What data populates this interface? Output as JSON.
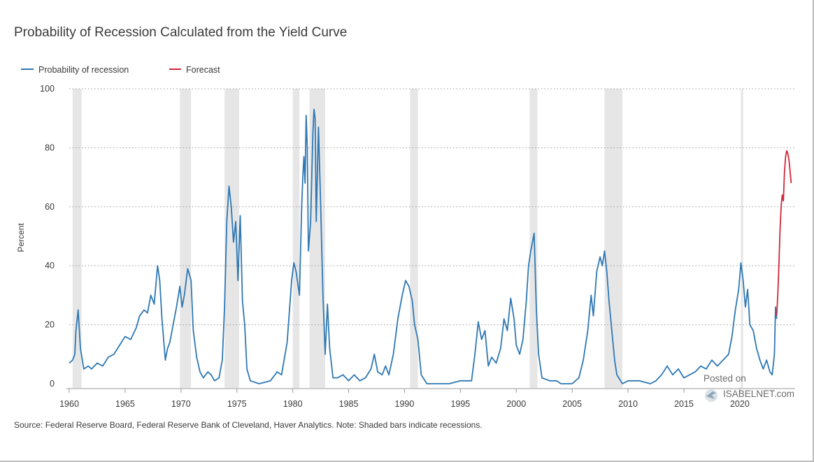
{
  "chart_data": {
    "type": "line",
    "title": "Probability of Recession Calculated from the Yield Curve",
    "ylabel": "Percent",
    "xlabel": "",
    "xlim": [
      1960,
      2024.7
    ],
    "ylim": [
      0,
      100
    ],
    "y_ticks": [
      0,
      20,
      40,
      60,
      80,
      100
    ],
    "x_ticks": [
      1960,
      1965,
      1970,
      1975,
      1980,
      1985,
      1990,
      1995,
      2000,
      2005,
      2010,
      2015,
      2020
    ],
    "grid": "horizontal dotted",
    "legend_position": "top-left",
    "colors": {
      "probability": "#2f78b4",
      "forecast": "#d0283a",
      "recession_shade": "#e6e6e6"
    },
    "recessions": [
      [
        1960.3,
        1961.1
      ],
      [
        1969.9,
        1970.9
      ],
      [
        1973.9,
        1975.2
      ],
      [
        1980.0,
        1980.6
      ],
      [
        1981.5,
        1982.9
      ],
      [
        1990.5,
        1991.2
      ],
      [
        2001.2,
        2001.9
      ],
      [
        2007.9,
        2009.5
      ],
      [
        2020.1,
        2020.3
      ]
    ],
    "series": [
      {
        "name": "Probability of recession",
        "color": "#2f78b4",
        "points": [
          [
            1960.0,
            7
          ],
          [
            1960.3,
            8
          ],
          [
            1960.5,
            10
          ],
          [
            1960.6,
            18
          ],
          [
            1960.8,
            25
          ],
          [
            1961.0,
            12
          ],
          [
            1961.3,
            5
          ],
          [
            1961.7,
            6
          ],
          [
            1962.0,
            5
          ],
          [
            1962.5,
            7
          ],
          [
            1963.0,
            6
          ],
          [
            1963.5,
            9
          ],
          [
            1964.0,
            10
          ],
          [
            1964.5,
            13
          ],
          [
            1965.0,
            16
          ],
          [
            1965.5,
            15
          ],
          [
            1966.0,
            19
          ],
          [
            1966.3,
            23
          ],
          [
            1966.7,
            25
          ],
          [
            1967.0,
            24
          ],
          [
            1967.3,
            30
          ],
          [
            1967.6,
            27
          ],
          [
            1967.9,
            40
          ],
          [
            1968.1,
            35
          ],
          [
            1968.3,
            22
          ],
          [
            1968.6,
            8
          ],
          [
            1968.8,
            12
          ],
          [
            1969.0,
            14
          ],
          [
            1969.3,
            20
          ],
          [
            1969.6,
            26
          ],
          [
            1969.9,
            33
          ],
          [
            1970.1,
            26
          ],
          [
            1970.3,
            30
          ],
          [
            1970.6,
            39
          ],
          [
            1970.9,
            35
          ],
          [
            1971.1,
            18
          ],
          [
            1971.4,
            9
          ],
          [
            1971.7,
            4
          ],
          [
            1972.0,
            2
          ],
          [
            1972.4,
            4
          ],
          [
            1972.7,
            3
          ],
          [
            1973.0,
            1
          ],
          [
            1973.4,
            2
          ],
          [
            1973.7,
            8
          ],
          [
            1973.9,
            26
          ],
          [
            1974.1,
            55
          ],
          [
            1974.3,
            67
          ],
          [
            1974.5,
            60
          ],
          [
            1974.7,
            48
          ],
          [
            1974.9,
            55
          ],
          [
            1975.1,
            35
          ],
          [
            1975.3,
            57
          ],
          [
            1975.5,
            28
          ],
          [
            1975.7,
            20
          ],
          [
            1975.9,
            5
          ],
          [
            1976.2,
            1
          ],
          [
            1977.0,
            0
          ],
          [
            1978.0,
            1
          ],
          [
            1978.6,
            4
          ],
          [
            1979.0,
            3
          ],
          [
            1979.5,
            14
          ],
          [
            1979.9,
            35
          ],
          [
            1980.1,
            41
          ],
          [
            1980.3,
            38
          ],
          [
            1980.6,
            30
          ],
          [
            1980.8,
            60
          ],
          [
            1980.9,
            70
          ],
          [
            1981.0,
            77
          ],
          [
            1981.1,
            68
          ],
          [
            1981.2,
            91
          ],
          [
            1981.3,
            80
          ],
          [
            1981.4,
            45
          ],
          [
            1981.6,
            55
          ],
          [
            1981.8,
            85
          ],
          [
            1981.9,
            93
          ],
          [
            1982.0,
            90
          ],
          [
            1982.1,
            55
          ],
          [
            1982.3,
            87
          ],
          [
            1982.5,
            60
          ],
          [
            1982.7,
            30
          ],
          [
            1982.9,
            10
          ],
          [
            1983.1,
            27
          ],
          [
            1983.3,
            12
          ],
          [
            1983.6,
            2
          ],
          [
            1984.0,
            2
          ],
          [
            1984.5,
            3
          ],
          [
            1985.0,
            1
          ],
          [
            1985.5,
            3
          ],
          [
            1986.0,
            1
          ],
          [
            1986.5,
            2
          ],
          [
            1987.0,
            5
          ],
          [
            1987.3,
            10
          ],
          [
            1987.6,
            4
          ],
          [
            1988.0,
            3
          ],
          [
            1988.3,
            6
          ],
          [
            1988.6,
            3
          ],
          [
            1989.0,
            10
          ],
          [
            1989.4,
            22
          ],
          [
            1989.8,
            30
          ],
          [
            1990.1,
            35
          ],
          [
            1990.4,
            33
          ],
          [
            1990.7,
            28
          ],
          [
            1990.9,
            20
          ],
          [
            1991.2,
            15
          ],
          [
            1991.5,
            3
          ],
          [
            1992.0,
            0
          ],
          [
            1993.0,
            0
          ],
          [
            1994.0,
            0
          ],
          [
            1995.0,
            1
          ],
          [
            1996.0,
            1
          ],
          [
            1996.3,
            10
          ],
          [
            1996.6,
            21
          ],
          [
            1996.9,
            15
          ],
          [
            1997.2,
            18
          ],
          [
            1997.5,
            6
          ],
          [
            1997.8,
            9
          ],
          [
            1998.2,
            7
          ],
          [
            1998.6,
            12
          ],
          [
            1998.9,
            22
          ],
          [
            1999.2,
            18
          ],
          [
            1999.5,
            29
          ],
          [
            1999.8,
            22
          ],
          [
            2000.0,
            13
          ],
          [
            2000.3,
            10
          ],
          [
            2000.6,
            15
          ],
          [
            2000.9,
            28
          ],
          [
            2001.1,
            40
          ],
          [
            2001.3,
            45
          ],
          [
            2001.6,
            51
          ],
          [
            2001.8,
            25
          ],
          [
            2002.0,
            10
          ],
          [
            2002.3,
            2
          ],
          [
            2003.0,
            1
          ],
          [
            2003.6,
            1
          ],
          [
            2004.0,
            0
          ],
          [
            2005.0,
            0
          ],
          [
            2005.6,
            2
          ],
          [
            2006.0,
            8
          ],
          [
            2006.4,
            18
          ],
          [
            2006.7,
            30
          ],
          [
            2006.9,
            23
          ],
          [
            2007.2,
            38
          ],
          [
            2007.5,
            43
          ],
          [
            2007.7,
            40
          ],
          [
            2007.9,
            45
          ],
          [
            2008.1,
            38
          ],
          [
            2008.3,
            28
          ],
          [
            2008.5,
            20
          ],
          [
            2008.8,
            8
          ],
          [
            2009.0,
            3
          ],
          [
            2009.5,
            0
          ],
          [
            2010.0,
            1
          ],
          [
            2011.0,
            1
          ],
          [
            2012.0,
            0
          ],
          [
            2012.5,
            1
          ],
          [
            2013.0,
            3
          ],
          [
            2013.5,
            6
          ],
          [
            2014.0,
            3
          ],
          [
            2014.5,
            5
          ],
          [
            2015.0,
            2
          ],
          [
            2015.5,
            3
          ],
          [
            2016.0,
            4
          ],
          [
            2016.5,
            6
          ],
          [
            2017.0,
            5
          ],
          [
            2017.5,
            8
          ],
          [
            2018.0,
            6
          ],
          [
            2018.5,
            8
          ],
          [
            2019.0,
            10
          ],
          [
            2019.3,
            16
          ],
          [
            2019.6,
            25
          ],
          [
            2019.9,
            32
          ],
          [
            2020.1,
            41
          ],
          [
            2020.3,
            35
          ],
          [
            2020.5,
            26
          ],
          [
            2020.7,
            32
          ],
          [
            2020.9,
            20
          ],
          [
            2021.2,
            18
          ],
          [
            2021.5,
            12
          ],
          [
            2021.8,
            8
          ],
          [
            2022.1,
            5
          ],
          [
            2022.4,
            8
          ],
          [
            2022.7,
            4
          ],
          [
            2022.9,
            3
          ],
          [
            2023.1,
            10
          ],
          [
            2023.2,
            26
          ],
          [
            2023.3,
            22
          ]
        ]
      },
      {
        "name": "Forecast",
        "color": "#d0283a",
        "points": [
          [
            2023.3,
            23
          ],
          [
            2023.4,
            30
          ],
          [
            2023.5,
            40
          ],
          [
            2023.6,
            52
          ],
          [
            2023.7,
            60
          ],
          [
            2023.8,
            64
          ],
          [
            2023.9,
            62
          ],
          [
            2024.0,
            72
          ],
          [
            2024.1,
            77
          ],
          [
            2024.2,
            79
          ],
          [
            2024.3,
            78
          ],
          [
            2024.4,
            76
          ],
          [
            2024.5,
            72
          ],
          [
            2024.6,
            68
          ]
        ]
      }
    ]
  },
  "source_note": "Source: Federal Reserve Board, Federal Reserve Bank of Cleveland, Haver Analytics. Note: Shaded bars indicate recessions.",
  "watermark": {
    "line1": "Posted on",
    "line2": "ISABELNET.com",
    "icon": "bird-logo-icon"
  }
}
